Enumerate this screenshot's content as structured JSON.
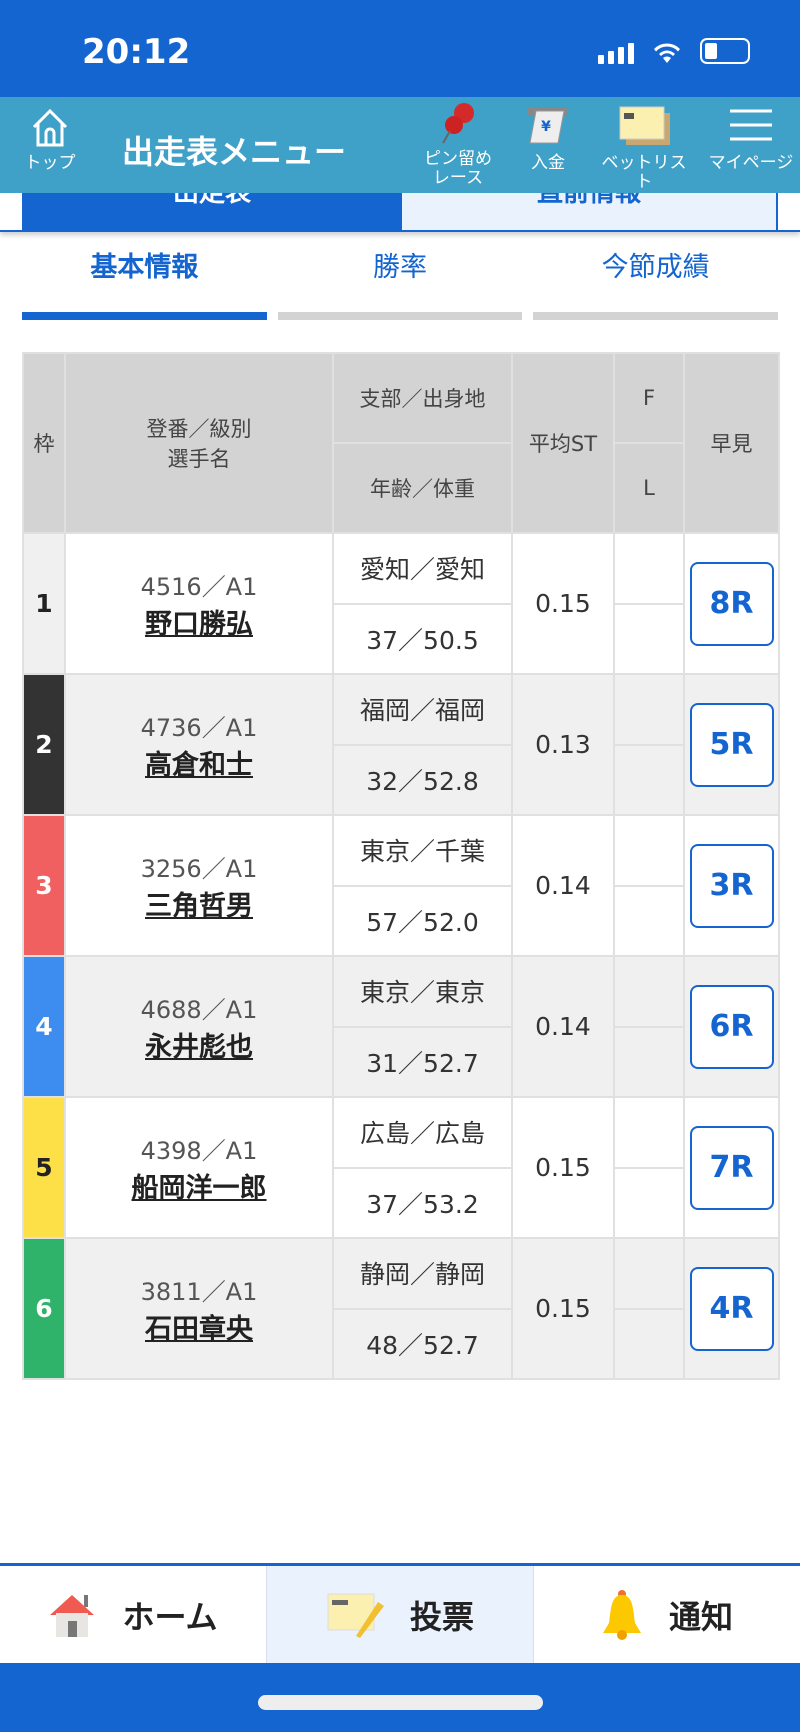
{
  "status": {
    "time": "20:12"
  },
  "header": {
    "title": "出走表メニュー",
    "top": "トップ",
    "pin": "ピン留め\nレース",
    "pin1": "ピン留め",
    "pin2": "レース",
    "deposit": "入金",
    "betlist": "ベットリスト",
    "mypage": "マイページ"
  },
  "page_tabs": [
    "出走表",
    "直前情報"
  ],
  "sub_tabs": [
    "基本情報",
    "勝率",
    "今節成績"
  ],
  "table": {
    "headers": {
      "waku": "枠",
      "reg": "登番／級別",
      "name": "選手名",
      "branch": "支部／出身地",
      "age": "年齢／体重",
      "st": "平均ST",
      "f": "F",
      "l": "L",
      "early": "早見"
    },
    "rows": [
      {
        "waku": "1",
        "reg": "4516／A1",
        "name": "野口勝弘",
        "branch": "愛知／愛知",
        "age": "37／50.5",
        "st": "0.15",
        "f": "",
        "l": "",
        "early": "8R",
        "color": "#f0f0f0",
        "text": "#222"
      },
      {
        "waku": "2",
        "reg": "4736／A1",
        "name": "高倉和士",
        "branch": "福岡／福岡",
        "age": "32／52.8",
        "st": "0.13",
        "f": "",
        "l": "",
        "early": "5R",
        "color": "#333333",
        "text": "#fff"
      },
      {
        "waku": "3",
        "reg": "3256／A1",
        "name": "三角哲男",
        "branch": "東京／千葉",
        "age": "57／52.0",
        "st": "0.14",
        "f": "",
        "l": "",
        "early": "3R",
        "color": "#f06060",
        "text": "#fff"
      },
      {
        "waku": "4",
        "reg": "4688／A1",
        "name": "永井彪也",
        "branch": "東京／東京",
        "age": "31／52.7",
        "st": "0.14",
        "f": "",
        "l": "",
        "early": "6R",
        "color": "#3d8df0",
        "text": "#fff"
      },
      {
        "waku": "5",
        "reg": "4398／A1",
        "name": "船岡洋一郎",
        "branch": "広島／広島",
        "age": "37／53.2",
        "st": "0.15",
        "f": "",
        "l": "",
        "early": "7R",
        "color": "#fde047",
        "text": "#222"
      },
      {
        "waku": "6",
        "reg": "3811／A1",
        "name": "石田章央",
        "branch": "静岡／静岡",
        "age": "48／52.7",
        "st": "0.15",
        "f": "",
        "l": "",
        "early": "4R",
        "color": "#2fb36a",
        "text": "#fff"
      }
    ]
  },
  "bottom_nav": {
    "home": "ホーム",
    "vote": "投票",
    "notify": "通知"
  },
  "colors": {
    "primary": "#1565d0",
    "header": "#3fa0c8"
  }
}
